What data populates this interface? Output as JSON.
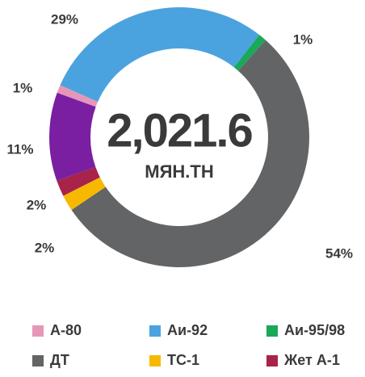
{
  "chart_data": {
    "type": "donut",
    "categories": [
      "А-80",
      "Аи-92",
      "Аи-95/98",
      "ДТ",
      "ТС-1",
      "Жет А-1",
      null
    ],
    "values": [
      1,
      29,
      1,
      54,
      2,
      2,
      11
    ],
    "value_labels": [
      "1%",
      "29%",
      "1%",
      "54%",
      "2%",
      "2%",
      "11%"
    ],
    "colors": [
      "#e896b8",
      "#4aa3df",
      "#1aa85a",
      "#636466",
      "#f7b900",
      "#a8234a",
      "#7a1fa2"
    ],
    "center_text": "2,021.6",
    "center_subtext": "МЯН.ТН",
    "legend": true
  }
}
